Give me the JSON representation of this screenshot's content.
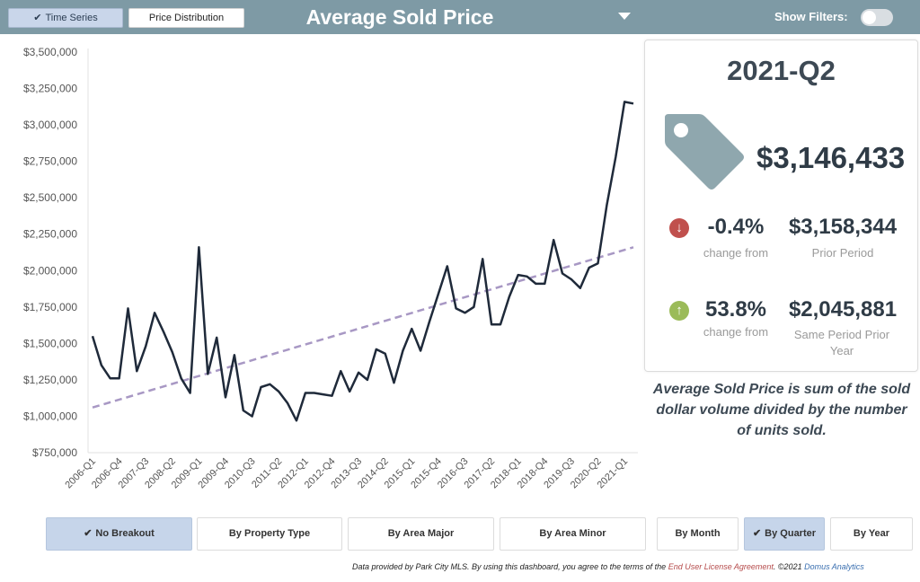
{
  "tabs": {
    "time_series": "Time Series",
    "price_distribution": "Price Distribution",
    "check_glyph": "✔"
  },
  "header": {
    "title": "Average Sold Price",
    "show_filters_label": "Show Filters:",
    "show_filters_on": false
  },
  "summary": {
    "period": "2021-Q2",
    "value": "$3,146,433",
    "prior": {
      "pct": "-0.4%",
      "change_label": "change from",
      "value": "$3,158,344",
      "label": "Prior Period",
      "direction": "down",
      "arrow": "↓"
    },
    "same_period": {
      "pct": "53.8%",
      "change_label": "change from",
      "value": "$2,045,881",
      "label": "Same Period Prior Year",
      "direction": "up",
      "arrow": "↑"
    },
    "description": "Average Sold Price is sum of the sold dollar volume divided by the number of units sold."
  },
  "buttons": {
    "no_breakout": "No Breakout",
    "by_property_type": "By Property Type",
    "by_area_major": "By Area Major",
    "by_area_minor": "By Area Minor",
    "by_month": "By Month",
    "by_quarter": "By Quarter",
    "by_year": "By Year"
  },
  "footer": {
    "text1": "Data provided by Park City MLS.  By using this dashboard, you agree to the terms of the ",
    "link": "End User License Agreement",
    "text2": ".  ©2021 ",
    "brand": "Domus Analytics"
  },
  "colors": {
    "header_bg": "#7e9aa5",
    "line": "#1f2a3a",
    "trend": "#a898c4",
    "tag": "#8fa7ae",
    "down": "#c0504d",
    "up": "#9bbb59",
    "selected_button": "#c6d5ea"
  },
  "chart_data": {
    "type": "line",
    "ylim": [
      750000,
      3500000
    ],
    "ytick_values": [
      750000,
      1000000,
      1250000,
      1500000,
      1750000,
      2000000,
      2250000,
      2500000,
      2750000,
      3000000,
      3250000,
      3500000
    ],
    "ytick_labels": [
      "$750,000",
      "$1,000,000",
      "$1,250,000",
      "$1,500,000",
      "$1,750,000",
      "$2,000,000",
      "$2,250,000",
      "$2,500,000",
      "$2,750,000",
      "$3,000,000",
      "$3,250,000",
      "$3,500,000"
    ],
    "x": [
      "2006-Q1",
      "2006-Q2",
      "2006-Q3",
      "2006-Q4",
      "2007-Q1",
      "2007-Q2",
      "2007-Q3",
      "2007-Q4",
      "2008-Q1",
      "2008-Q2",
      "2008-Q3",
      "2008-Q4",
      "2009-Q1",
      "2009-Q2",
      "2009-Q3",
      "2009-Q4",
      "2010-Q1",
      "2010-Q2",
      "2010-Q3",
      "2010-Q4",
      "2011-Q1",
      "2011-Q2",
      "2011-Q3",
      "2011-Q4",
      "2012-Q1",
      "2012-Q2",
      "2012-Q3",
      "2012-Q4",
      "2013-Q1",
      "2013-Q2",
      "2013-Q3",
      "2013-Q4",
      "2014-Q1",
      "2014-Q2",
      "2014-Q3",
      "2014-Q4",
      "2015-Q1",
      "2015-Q2",
      "2015-Q3",
      "2015-Q4",
      "2016-Q1",
      "2016-Q2",
      "2016-Q3",
      "2016-Q4",
      "2017-Q1",
      "2017-Q2",
      "2017-Q3",
      "2017-Q4",
      "2018-Q1",
      "2018-Q2",
      "2018-Q3",
      "2018-Q4",
      "2019-Q1",
      "2019-Q2",
      "2019-Q3",
      "2019-Q4",
      "2020-Q1",
      "2020-Q2",
      "2020-Q3",
      "2020-Q4",
      "2021-Q1",
      "2021-Q2"
    ],
    "xtick_labels": [
      "2006-Q1",
      "2006-Q4",
      "2007-Q3",
      "2008-Q2",
      "2009-Q1",
      "2009-Q4",
      "2010-Q3",
      "2011-Q2",
      "2012-Q1",
      "2012-Q4",
      "2013-Q3",
      "2014-Q2",
      "2015-Q1",
      "2015-Q4",
      "2016-Q3",
      "2017-Q2",
      "2018-Q1",
      "2018-Q4",
      "2019-Q3",
      "2020-Q2",
      "2021-Q1"
    ],
    "series": [
      {
        "values": [
          1550000,
          1350000,
          1260000,
          1260000,
          1740000,
          1310000,
          1480000,
          1710000,
          1580000,
          1440000,
          1260000,
          1160000,
          2160000,
          1290000,
          1540000,
          1130000,
          1420000,
          1040000,
          1000000,
          1200000,
          1220000,
          1170000,
          1090000,
          970000,
          1160000,
          1160000,
          1150000,
          1140000,
          1310000,
          1170000,
          1300000,
          1250000,
          1460000,
          1430000,
          1230000,
          1450000,
          1600000,
          1450000,
          1650000,
          1840000,
          2030000,
          1740000,
          1710000,
          1750000,
          2080000,
          1630000,
          1630000,
          1820000,
          1970000,
          1960000,
          1910000,
          1910000,
          2210000,
          1980000,
          1940000,
          1880000,
          2020000,
          2050000,
          2450000,
          2780000,
          3158344,
          3146433
        ]
      }
    ],
    "trendline": {
      "start": 1060000,
      "end": 2160000
    },
    "grid": false,
    "legend": "none"
  }
}
